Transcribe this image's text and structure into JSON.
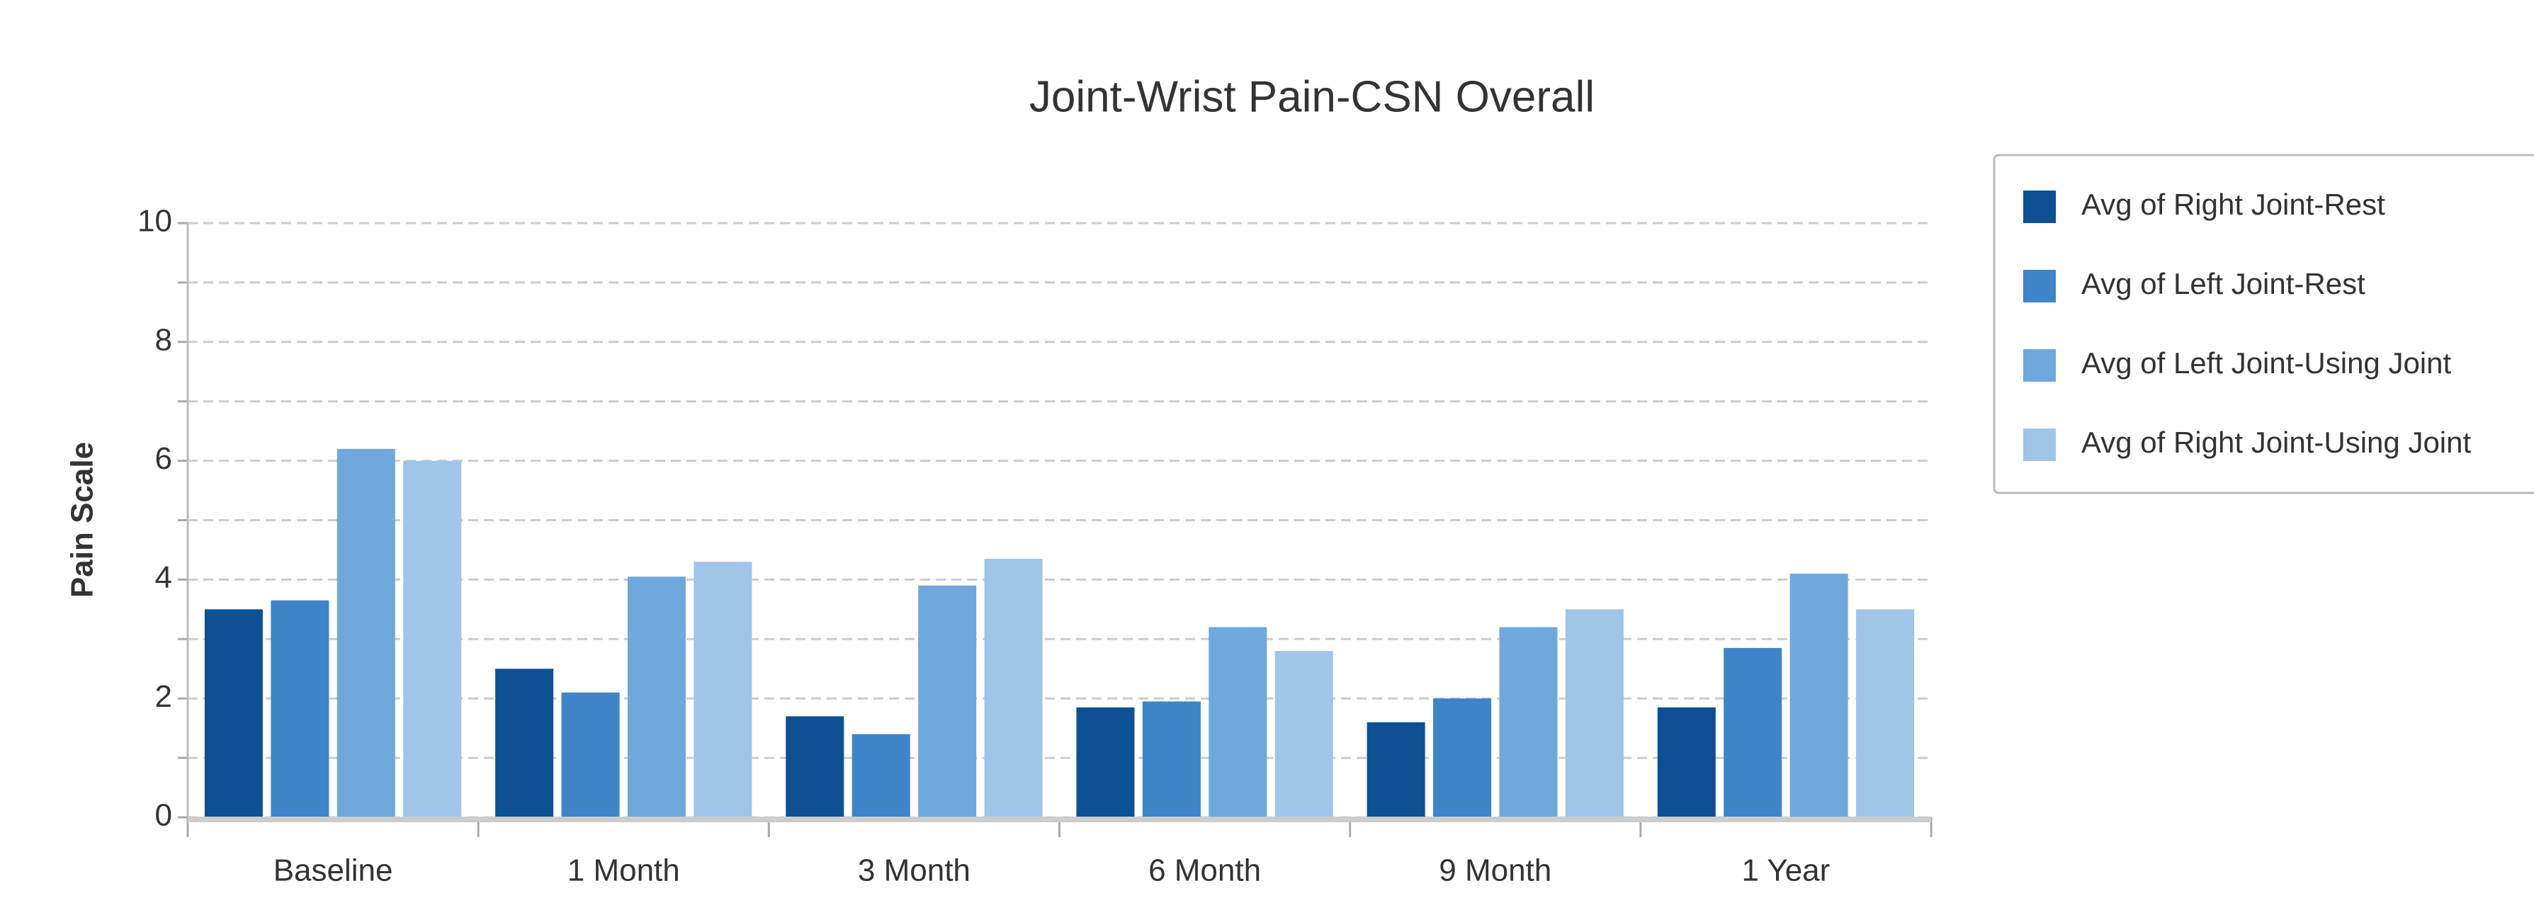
{
  "chart_data": {
    "type": "bar",
    "title": "Joint-Wrist Pain-CSN Overall",
    "y_label": "Pain Scale",
    "categories": [
      "Baseline",
      "1 Month",
      "3 Month",
      "6 Month",
      "9 Month",
      "1 Year"
    ],
    "series": [
      {
        "name": "Avg of Right Joint-Rest",
        "color": "#0d5194",
        "values": [
          3.5,
          2.5,
          1.7,
          1.85,
          1.6,
          1.85
        ]
      },
      {
        "name": "Avg of Left Joint-Rest",
        "color": "#3d85c8",
        "values": [
          3.65,
          2.1,
          1.4,
          1.95,
          2.0,
          2.85
        ]
      },
      {
        "name": "Avg of Left Joint-Using Joint",
        "color": "#6fa8dc",
        "values": [
          6.2,
          4.05,
          3.9,
          3.2,
          3.2,
          4.1
        ]
      },
      {
        "name": "Avg of Right Joint-Using Joint",
        "color": "#9fc5e8",
        "values": [
          6.0,
          4.3,
          4.35,
          2.8,
          3.5,
          3.5
        ]
      }
    ],
    "ylim": [
      0,
      10
    ],
    "yticks": [
      0,
      2,
      4,
      6,
      8,
      10
    ],
    "minor_yticks": [
      1,
      3,
      5,
      7,
      9
    ],
    "grid": true,
    "legend": "right"
  }
}
